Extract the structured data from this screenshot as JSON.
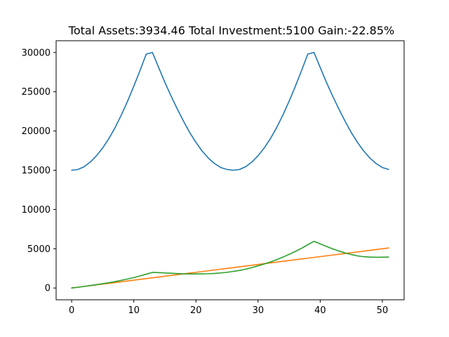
{
  "chart_data": {
    "type": "line",
    "title": "Total Assets:3934.46  Total Investment:5100  Gain:-22.85%",
    "xlabel": "",
    "ylabel": "",
    "xlim": [
      -2.5,
      53.5
    ],
    "ylim": [
      -1500,
      31500
    ],
    "xticks": [
      0,
      10,
      20,
      30,
      40,
      50
    ],
    "yticks": [
      0,
      5000,
      10000,
      15000,
      20000,
      25000,
      30000
    ],
    "grid": false,
    "legend": "none",
    "x": [
      0,
      1,
      2,
      3,
      4,
      5,
      6,
      7,
      8,
      9,
      10,
      11,
      12,
      13,
      14,
      15,
      16,
      17,
      18,
      19,
      20,
      21,
      22,
      23,
      24,
      25,
      26,
      27,
      28,
      29,
      30,
      31,
      32,
      33,
      34,
      35,
      36,
      37,
      38,
      39,
      40,
      41,
      42,
      43,
      44,
      45,
      46,
      47,
      48,
      49,
      50,
      51
    ],
    "series": [
      {
        "color": "#1f77b4",
        "values": [
          15000,
          15100,
          15450,
          16050,
          16850,
          17850,
          19050,
          20450,
          22050,
          23800,
          25700,
          27700,
          29800,
          30000,
          28100,
          26200,
          24450,
          22800,
          21250,
          19800,
          18550,
          17450,
          16550,
          15850,
          15350,
          15100,
          15000,
          15100,
          15450,
          16050,
          16850,
          17850,
          19050,
          20450,
          22050,
          23800,
          25700,
          27700,
          29800,
          30000,
          28100,
          26200,
          24450,
          22800,
          21250,
          19800,
          18550,
          17450,
          16550,
          15850,
          15350,
          15100
        ]
      },
      {
        "color": "#ff7f0e",
        "values": [
          0,
          100,
          200,
          300,
          400,
          500,
          600,
          700,
          800,
          900,
          1000,
          1100,
          1200,
          1300,
          1400,
          1500,
          1600,
          1700,
          1800,
          1900,
          2000,
          2100,
          2200,
          2300,
          2400,
          2500,
          2600,
          2700,
          2800,
          2900,
          3000,
          3100,
          3200,
          3300,
          3400,
          3500,
          3600,
          3700,
          3800,
          3900,
          4000,
          4100,
          4200,
          4300,
          4400,
          4500,
          4600,
          4700,
          4800,
          4900,
          5000,
          5100
        ]
      },
      {
        "color": "#2ca02c",
        "values": [
          0,
          100,
          200,
          320,
          430,
          550,
          680,
          820,
          980,
          1150,
          1330,
          1540,
          1760,
          1990,
          1960,
          1920,
          1880,
          1840,
          1800,
          1790,
          1790,
          1800,
          1820,
          1860,
          1920,
          2000,
          2110,
          2240,
          2400,
          2600,
          2820,
          3060,
          3320,
          3620,
          3940,
          4290,
          4660,
          5070,
          5510,
          5950,
          5620,
          5300,
          5000,
          4720,
          4470,
          4260,
          4090,
          3990,
          3940,
          3920,
          3930,
          3934.46
        ]
      }
    ]
  }
}
